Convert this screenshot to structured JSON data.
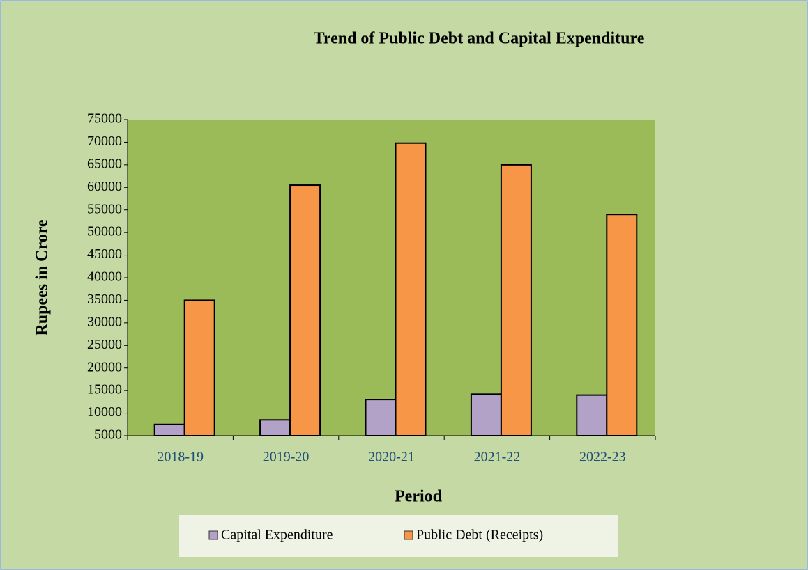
{
  "chart_data": {
    "type": "bar",
    "title": "Trend of Public Debt and Capital Expenditure",
    "x_label": "Period",
    "y_label": "Rupees in Crore",
    "categories": [
      "2018-19",
      "2019-20",
      "2020-21",
      "2021-22",
      "2022-23"
    ],
    "series": [
      {
        "name": "Capital Expenditure",
        "color": "#b3a2c7",
        "values": [
          7500,
          8500,
          13000,
          14200,
          14000
        ]
      },
      {
        "name": "Public Debt (Receipts)",
        "color": "#f79646",
        "values": [
          35000,
          60500,
          69800,
          65000,
          54000
        ]
      }
    ],
    "ylim": [
      5000,
      75000
    ],
    "yticks": [
      5000,
      10000,
      15000,
      20000,
      25000,
      30000,
      35000,
      40000,
      45000,
      50000,
      55000,
      60000,
      65000,
      70000,
      75000
    ],
    "grid": false
  }
}
